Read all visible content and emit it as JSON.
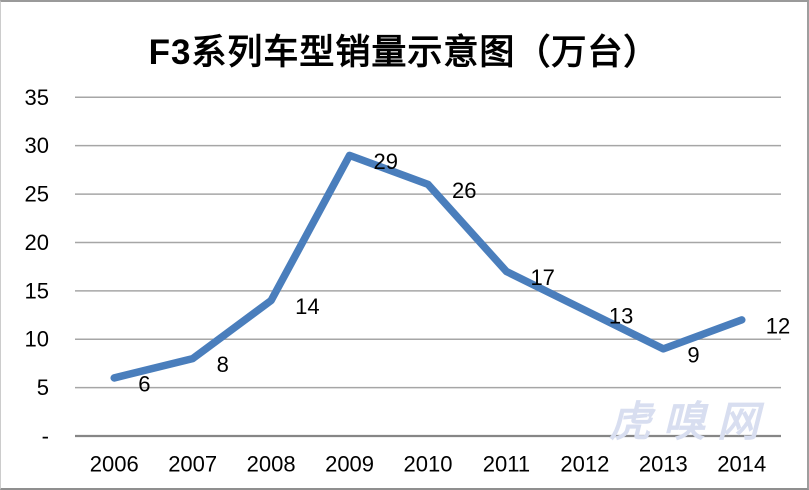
{
  "chart_data": {
    "type": "line",
    "title": "F3系列车型销量示意图（万台）",
    "categories": [
      "2006",
      "2007",
      "2008",
      "2009",
      "2010",
      "2011",
      "2012",
      "2013",
      "2014"
    ],
    "values": [
      6,
      8,
      14,
      29,
      26,
      17,
      13,
      9,
      12
    ],
    "data_labels": [
      "6",
      "8",
      "14",
      "29",
      "26",
      "17",
      "13",
      "9",
      "12"
    ],
    "xlabel": "",
    "ylabel": "",
    "ylim": [
      0,
      35
    ],
    "yticks": {
      "values": [
        0,
        5,
        10,
        15,
        20,
        25,
        30,
        35
      ],
      "labels": [
        "-",
        "5",
        "10",
        "15",
        "20",
        "25",
        "30",
        "35"
      ]
    },
    "grid": true,
    "legend_position": "none",
    "line_color": "#4a7ebc",
    "gridline_color": "#a6a6a6",
    "axis_color": "#868686",
    "tick_label_color": "#000000",
    "data_label_color": "#000000"
  },
  "watermark": {
    "text": "虎嗅网",
    "color": "#d8def0"
  }
}
